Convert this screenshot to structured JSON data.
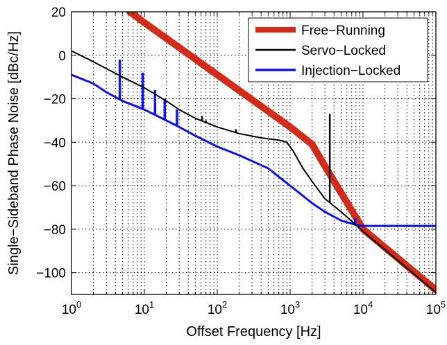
{
  "chart_data": {
    "type": "line",
    "xlabel": "Offset Frequency [Hz]",
    "ylabel": "Single−Sideband Phase Noise [dBc/Hz]",
    "x_scale": "log",
    "xlim": [
      1,
      100000
    ],
    "ylim": [
      -110,
      20
    ],
    "x_ticks": [
      {
        "value": 1,
        "base": "10",
        "exp": "0"
      },
      {
        "value": 10,
        "base": "10",
        "exp": "1"
      },
      {
        "value": 100,
        "base": "10",
        "exp": "2"
      },
      {
        "value": 1000,
        "base": "10",
        "exp": "3"
      },
      {
        "value": 10000,
        "base": "10",
        "exp": "4"
      },
      {
        "value": 100000,
        "base": "10",
        "exp": "5"
      }
    ],
    "y_ticks": [
      {
        "value": 20,
        "label": "20"
      },
      {
        "value": 0,
        "label": "0"
      },
      {
        "value": -20,
        "label": "−20"
      },
      {
        "value": -40,
        "label": "−40"
      },
      {
        "value": -60,
        "label": "−60"
      },
      {
        "value": -80,
        "label": "−80"
      },
      {
        "value": -100,
        "label": "−100"
      }
    ],
    "grid": true,
    "legend_position": "top-right",
    "series": [
      {
        "name": "Free−Running",
        "color": "#d42a1a",
        "points": [
          [
            6.3,
            20
          ],
          [
            10,
            15
          ],
          [
            100,
            -9
          ],
          [
            1000,
            -33
          ],
          [
            2000,
            -41
          ],
          [
            3000,
            -51
          ],
          [
            10000,
            -80
          ],
          [
            100000,
            -108
          ]
        ]
      },
      {
        "name": "Servo−Locked",
        "color": "#000000",
        "points": [
          [
            1,
            2
          ],
          [
            2,
            -3
          ],
          [
            5,
            -10
          ],
          [
            10,
            -15
          ],
          [
            20,
            -21
          ],
          [
            30,
            -25
          ],
          [
            50,
            -29
          ],
          [
            100,
            -33
          ],
          [
            200,
            -36
          ],
          [
            400,
            -38
          ],
          [
            700,
            -39
          ],
          [
            900,
            -40
          ],
          [
            1100,
            -44
          ],
          [
            1500,
            -52
          ],
          [
            2000,
            -58
          ],
          [
            3000,
            -66
          ],
          [
            5000,
            -72
          ],
          [
            8000,
            -78
          ],
          [
            10000,
            -81
          ],
          [
            100000,
            -109
          ]
        ],
        "spikes": [
          [
            62,
            -28
          ],
          [
            70,
            -30
          ],
          [
            180,
            -34
          ],
          [
            3500,
            -27
          ]
        ]
      },
      {
        "name": "Injection−Locked",
        "color": "#1010e8",
        "points": [
          [
            1,
            -9
          ],
          [
            2,
            -13
          ],
          [
            3,
            -17
          ],
          [
            5,
            -21
          ],
          [
            10,
            -25
          ],
          [
            20,
            -30
          ],
          [
            30,
            -33
          ],
          [
            50,
            -37
          ],
          [
            100,
            -42
          ],
          [
            200,
            -46
          ],
          [
            500,
            -52
          ],
          [
            1000,
            -60
          ],
          [
            2000,
            -68
          ],
          [
            3000,
            -72
          ],
          [
            5000,
            -76
          ],
          [
            8000,
            -78
          ],
          [
            10000,
            -78.5
          ],
          [
            100000,
            -78.5
          ]
        ],
        "spikes": [
          [
            4.6,
            -2
          ],
          [
            9.5,
            -8
          ],
          [
            14,
            -16
          ],
          [
            19,
            -20
          ],
          [
            28,
            -25
          ],
          [
            7800,
            -75
          ]
        ]
      }
    ]
  }
}
